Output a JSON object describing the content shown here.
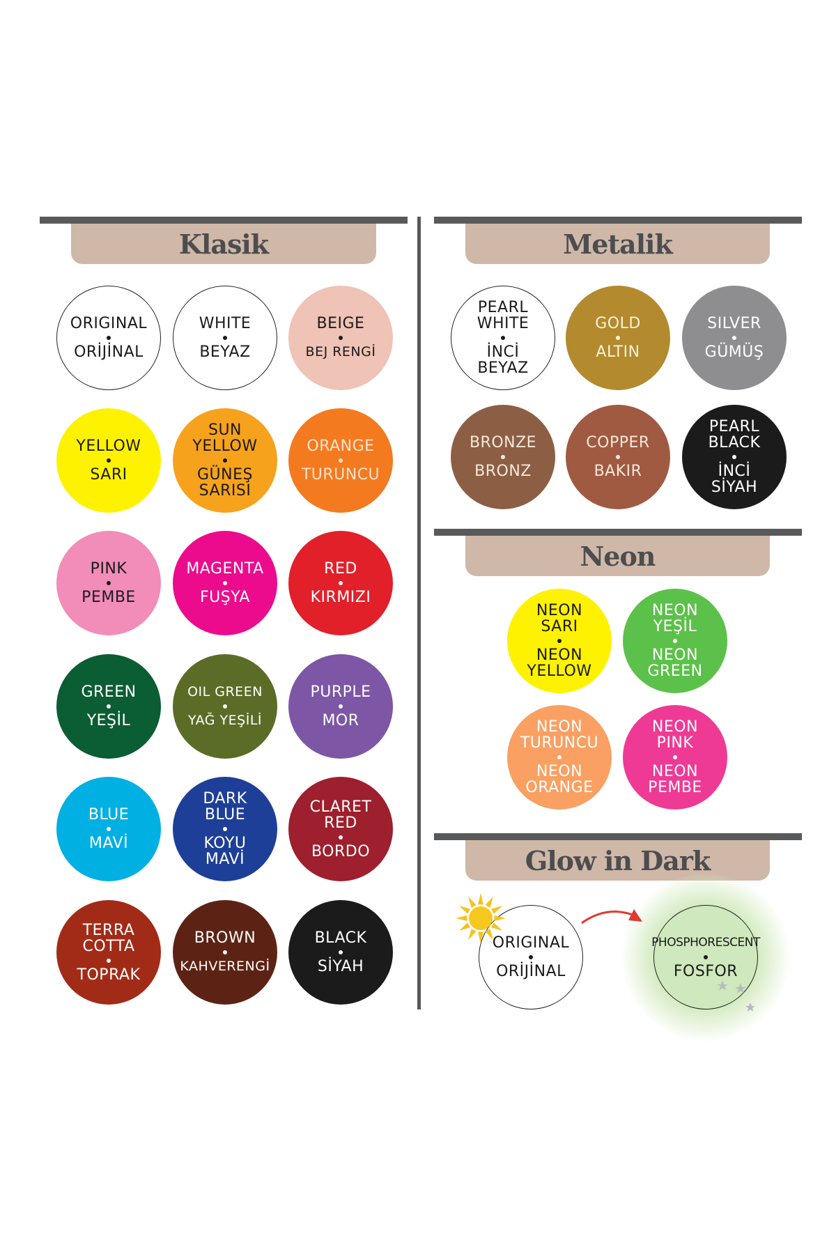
{
  "sections": {
    "klasik": {
      "title": "Klasik"
    },
    "metalik": {
      "title": "Metalik"
    },
    "neon": {
      "title": "Neon"
    },
    "glow": {
      "title": "Glow in Dark"
    }
  },
  "colors": {
    "bar": "#58595b",
    "pill": "#cfb8a8",
    "title": "#4d4d4f",
    "arrow": "#e03a2f",
    "sun": "#f7c21b",
    "moon": "#b9b9bd"
  },
  "klasik": [
    {
      "en": [
        "ORIGINAL"
      ],
      "tr": [
        "ORİJİNAL"
      ],
      "color": "#ffffff",
      "text": "#1a1a1a",
      "outline": true
    },
    {
      "en": [
        "WHITE"
      ],
      "tr": [
        "BEYAZ"
      ],
      "color": "#ffffff",
      "text": "#1a1a1a",
      "outline": true
    },
    {
      "en": [
        "BEIGE"
      ],
      "tr": [
        "BEJ RENGİ"
      ],
      "color": "#efc3b5",
      "text": "#1a1a1a"
    },
    {
      "en": [
        "YELLOW"
      ],
      "tr": [
        "SARI"
      ],
      "color": "#fff200",
      "text": "#1a1a1a"
    },
    {
      "en": [
        "SUN",
        "YELLOW"
      ],
      "tr": [
        "GÜNEŞ",
        "SARISI"
      ],
      "color": "#f7a21c",
      "text": "#1a1a1a"
    },
    {
      "en": [
        "ORANGE"
      ],
      "tr": [
        "TURUNCU"
      ],
      "color": "#f47a20",
      "text": "#fbe3cc"
    },
    {
      "en": [
        "PINK"
      ],
      "tr": [
        "PEMBE"
      ],
      "color": "#f28cb9",
      "text": "#1a1a1a"
    },
    {
      "en": [
        "MAGENTA"
      ],
      "tr": [
        "FUŞYA"
      ],
      "color": "#ec0b8d",
      "text": "#ffffff"
    },
    {
      "en": [
        "RED"
      ],
      "tr": [
        "KIRMIZI"
      ],
      "color": "#e2202a",
      "text": "#ffffff"
    },
    {
      "en": [
        "GREEN"
      ],
      "tr": [
        "YEŞİL"
      ],
      "color": "#0b5d33",
      "text": "#ffffff"
    },
    {
      "en": [
        "OIL GREEN"
      ],
      "tr": [
        "YAĞ YEŞİLİ"
      ],
      "color": "#5b6c27",
      "text": "#ffffff"
    },
    {
      "en": [
        "PURPLE"
      ],
      "tr": [
        "MOR"
      ],
      "color": "#7d56a5",
      "text": "#ffffff"
    },
    {
      "en": [
        "BLUE"
      ],
      "tr": [
        "MAVİ"
      ],
      "color": "#00b0e2",
      "text": "#ffffff"
    },
    {
      "en": [
        "DARK",
        "BLUE"
      ],
      "tr": [
        "KOYU",
        "MAVİ"
      ],
      "color": "#1e3f98",
      "text": "#ffffff"
    },
    {
      "en": [
        "CLARET",
        "RED"
      ],
      "tr": [
        "BORDO"
      ],
      "color": "#9e1f2d",
      "text": "#ffffff"
    },
    {
      "en": [
        "TERRA",
        "COTTA"
      ],
      "tr": [
        "TOPRAK"
      ],
      "color": "#a22b17",
      "text": "#ffffff"
    },
    {
      "en": [
        "BROWN"
      ],
      "tr": [
        "KAHVERENGİ"
      ],
      "color": "#5c2314",
      "text": "#ffffff"
    },
    {
      "en": [
        "BLACK"
      ],
      "tr": [
        "SİYAH"
      ],
      "color": "#1b1b1b",
      "text": "#ffffff"
    }
  ],
  "metalik": [
    {
      "en": [
        "PEARL",
        "WHITE"
      ],
      "tr": [
        "İNCİ",
        "BEYAZ"
      ],
      "color": "#ffffff",
      "text": "#1a1a1a",
      "outline": true
    },
    {
      "en": [
        "GOLD"
      ],
      "tr": [
        "ALTIN"
      ],
      "color": "#b38a2e",
      "text": "#fbf1d8"
    },
    {
      "en": [
        "SILVER"
      ],
      "tr": [
        "GÜMÜŞ"
      ],
      "color": "#8e8e90",
      "text": "#ffffff"
    },
    {
      "en": [
        "BRONZE"
      ],
      "tr": [
        "BRONZ"
      ],
      "color": "#8c5f45",
      "text": "#f6e8da"
    },
    {
      "en": [
        "COPPER"
      ],
      "tr": [
        "BAKIR"
      ],
      "color": "#a05a41",
      "text": "#f6e8da"
    },
    {
      "en": [
        "PEARL",
        "BLACK"
      ],
      "tr": [
        "İNCİ",
        "SİYAH"
      ],
      "color": "#1b1b1b",
      "text": "#ffffff"
    }
  ],
  "neon": [
    {
      "en": [
        "NEON",
        "SARI"
      ],
      "tr": [
        "NEON",
        "YELLOW"
      ],
      "color": "#fff200",
      "text": "#1a1a1a"
    },
    {
      "en": [
        "NEON",
        "YEŞİL"
      ],
      "tr": [
        "NEON",
        "GREEN"
      ],
      "color": "#5cc14a",
      "text": "#ffffff"
    },
    {
      "en": [
        "NEON",
        "TURUNCU"
      ],
      "tr": [
        "NEON",
        "ORANGE"
      ],
      "color": "#f9a062",
      "text": "#ffffff"
    },
    {
      "en": [
        "NEON",
        "PINK"
      ],
      "tr": [
        "NEON",
        "PEMBE"
      ],
      "color": "#ee3a95",
      "text": "#ffffff"
    }
  ],
  "glow": [
    {
      "en": [
        "ORIGINAL"
      ],
      "tr": [
        "ORİJİNAL"
      ],
      "color": "#ffffff",
      "text": "#1a1a1a",
      "outline": true,
      "icon": "sun"
    },
    {
      "en": [
        "PHOSPHORESCENT"
      ],
      "tr": [
        "FOSFOR"
      ],
      "color": "#cfe8bd",
      "text": "#1a1a1a",
      "outline": true,
      "icon": "moon-stars"
    }
  ]
}
